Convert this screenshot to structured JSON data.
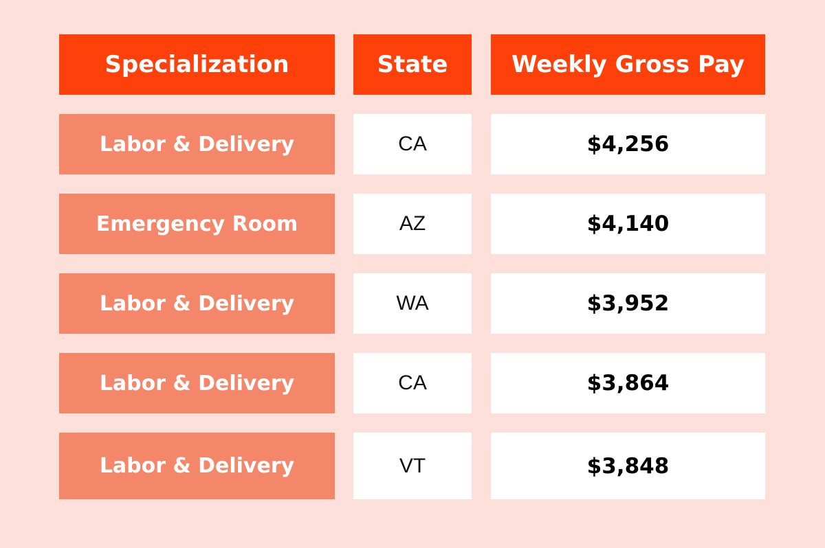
{
  "table": {
    "header": [
      "Specialization",
      "State",
      "Weekly Gross Pay"
    ],
    "rows": [
      [
        "Labor & Delivery",
        "CA",
        "$4,256"
      ],
      [
        "Emergency Room",
        "AZ",
        "$4,140"
      ],
      [
        "Labor & Delivery",
        "WA",
        "$3,952"
      ],
      [
        "Labor & Delivery",
        "CA",
        "$3,864"
      ],
      [
        "Labor & Delivery",
        "VT",
        "$3,848"
      ]
    ]
  }
}
